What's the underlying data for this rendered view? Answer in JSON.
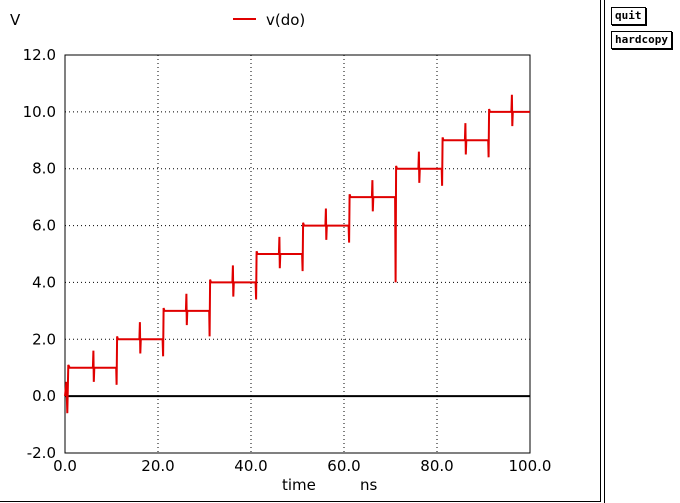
{
  "toolbar": {
    "quit_label": "quit",
    "hardcopy_label": "hardcopy"
  },
  "chart_data": {
    "type": "line",
    "ylabel": "V",
    "xlabel": "time",
    "xunit": "ns",
    "legend": "top-center",
    "grid": true,
    "xlim": [
      0,
      100
    ],
    "ylim": [
      -2,
      12
    ],
    "x_ticks": [
      0,
      20,
      40,
      60,
      80,
      100
    ],
    "x_tick_labels": [
      "0.0",
      "20.0",
      "40.0",
      "60.0",
      "80.0",
      "100.0"
    ],
    "y_ticks": [
      -2,
      0,
      2,
      4,
      6,
      8,
      10,
      12
    ],
    "y_tick_labels": [
      "-2.0",
      "0.0",
      "2.0",
      "4.0",
      "6.0",
      "8.0",
      "10.0",
      "12.0"
    ],
    "series": [
      {
        "name": "v(do)",
        "color": "#e00000",
        "x": [
          0,
          0.3,
          0.5,
          0.7,
          1,
          6,
          6.1,
          6.2,
          6.3,
          11,
          11.1,
          11.2,
          11.4,
          16,
          16.1,
          16.2,
          16.3,
          21,
          21.1,
          21.2,
          21.4,
          26,
          26.1,
          26.2,
          26.3,
          31,
          31.1,
          31.2,
          31.4,
          36,
          36.1,
          36.2,
          36.3,
          41,
          41.1,
          41.2,
          41.4,
          46,
          46.1,
          46.2,
          46.3,
          51,
          51.1,
          51.2,
          51.4,
          56,
          56.1,
          56.2,
          56.3,
          61,
          61.1,
          61.2,
          61.4,
          66,
          66.1,
          66.2,
          66.3,
          71,
          71.1,
          71.2,
          71.4,
          76,
          76.1,
          76.2,
          76.3,
          81,
          81.1,
          81.2,
          81.4,
          86,
          86.1,
          86.2,
          86.3,
          91,
          91.1,
          91.2,
          91.4,
          96,
          96.1,
          96.2,
          96.3,
          100
        ],
        "y": [
          0,
          0.5,
          -0.6,
          1.1,
          1,
          1,
          1.6,
          0.5,
          1,
          1,
          0.4,
          2.1,
          2,
          2,
          2.6,
          1.5,
          2,
          2,
          1.4,
          3.1,
          3,
          3,
          3.6,
          2.5,
          3,
          3,
          2.1,
          4.1,
          4,
          4,
          4.6,
          3.5,
          4,
          4,
          3.4,
          5.1,
          5,
          5,
          5.6,
          4.5,
          5,
          5,
          4.4,
          6.1,
          6,
          6,
          6.6,
          5.5,
          6,
          6,
          5.4,
          7.1,
          7,
          7,
          7.6,
          6.5,
          7,
          7,
          4.0,
          8.1,
          8,
          8,
          8.6,
          7.5,
          8,
          8,
          7.4,
          9.1,
          9,
          9,
          9.6,
          8.5,
          9,
          9,
          8.4,
          10.1,
          10,
          10,
          10.6,
          9.5,
          10,
          10
        ]
      }
    ]
  }
}
